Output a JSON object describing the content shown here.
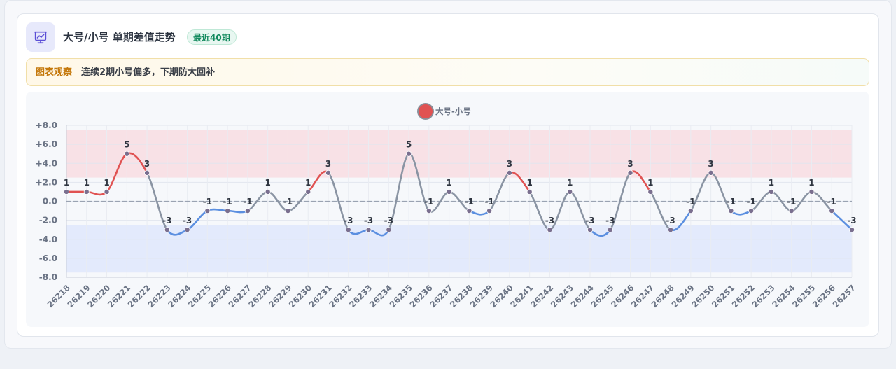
{
  "header": {
    "title": "大号/小号 单期差值走势",
    "badge": "最近40期",
    "icon": "chart-presentation-icon"
  },
  "notice": {
    "label": "图表观察",
    "text": "连续2期小号偏多，下期防大回补"
  },
  "colors": {
    "positive": "#e05252",
    "negative": "#5b8fe0",
    "neutral": "#8a94a3",
    "band_high": "#f8dde2",
    "band_low": "#dfe7fb"
  },
  "chart_data": {
    "type": "line",
    "legend": "大号-小号",
    "x": [
      "26218",
      "26219",
      "26220",
      "26221",
      "26222",
      "26223",
      "26224",
      "26225",
      "26226",
      "26227",
      "26228",
      "26229",
      "26230",
      "26231",
      "26232",
      "26233",
      "26234",
      "26235",
      "26236",
      "26237",
      "26238",
      "26239",
      "26240",
      "26241",
      "26242",
      "26243",
      "26244",
      "26245",
      "26246",
      "26247",
      "26248",
      "26249",
      "26250",
      "26251",
      "26252",
      "26253",
      "26254",
      "26255",
      "26256",
      "26257"
    ],
    "series": [
      {
        "name": "大号-小号",
        "values": [
          1,
          1,
          1,
          5,
          3,
          -3,
          -3,
          -1,
          -1,
          -1,
          1,
          -1,
          1,
          3,
          -3,
          -3,
          -3,
          5,
          -1,
          1,
          -1,
          -1,
          3,
          1,
          -3,
          1,
          -3,
          -3,
          3,
          1,
          -3,
          -1,
          3,
          -1,
          -1,
          1,
          -1,
          1,
          -1,
          -3
        ]
      }
    ],
    "ylim": [
      -8,
      8
    ],
    "yticks": [
      "+8.0",
      "+6.0",
      "+4.0",
      "+2.0",
      "0.0",
      "-2.0",
      "-4.0",
      "-6.0",
      "-8.0"
    ],
    "ytick_values": [
      8,
      6,
      4,
      2,
      0,
      -2,
      -4,
      -6,
      -8
    ],
    "bands": [
      {
        "from": 2.5,
        "to": 7.5,
        "kind": "high"
      },
      {
        "from": -7.5,
        "to": -2.5,
        "kind": "low"
      }
    ],
    "zero_line": "dashed",
    "grid": true,
    "legend_position": "top-center"
  }
}
